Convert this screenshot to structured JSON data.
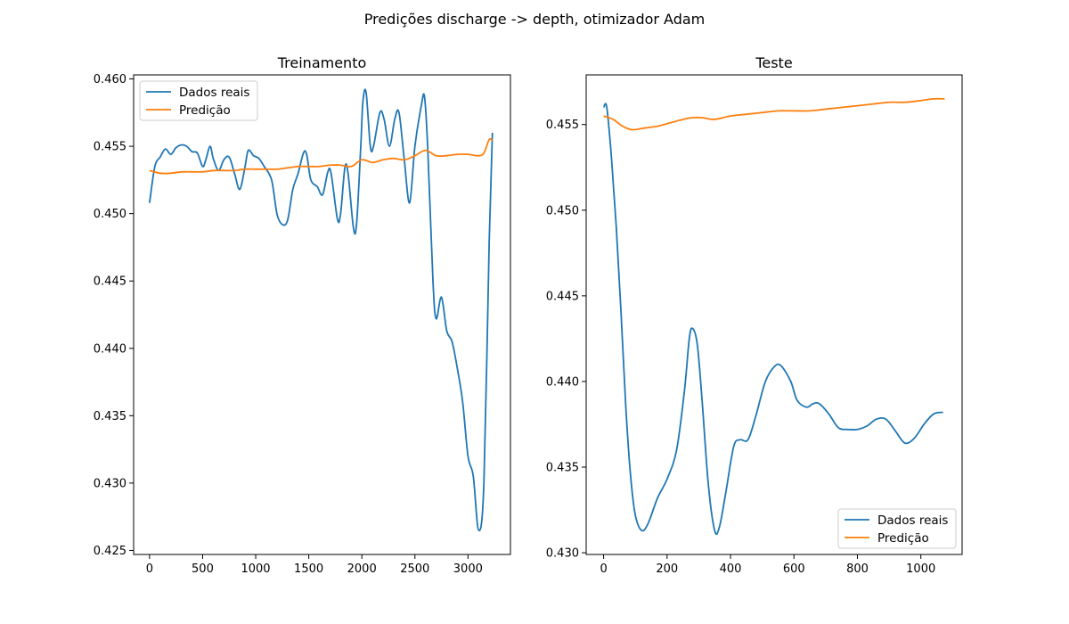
{
  "suptitle": "Predições discharge -> depth, otimizador Adam",
  "colors": {
    "real": "#1f77b4",
    "pred": "#ff7f0e"
  },
  "chart_data": [
    {
      "type": "line",
      "title": "Treinamento",
      "xlim": [
        -150,
        3400
      ],
      "ylim": [
        0.4247,
        0.4603
      ],
      "xticks": [
        0,
        500,
        1000,
        1500,
        2000,
        2500,
        3000
      ],
      "xtick_labels": [
        "0",
        "500",
        "1000",
        "1500",
        "2000",
        "2500",
        "3000"
      ],
      "yticks": [
        0.425,
        0.43,
        0.435,
        0.44,
        0.445,
        0.45,
        0.455,
        0.46
      ],
      "ytick_labels": [
        "0.425",
        "0.430",
        "0.435",
        "0.440",
        "0.445",
        "0.450",
        "0.455",
        "0.460"
      ],
      "legend_position": "upper-left",
      "series": [
        {
          "name": "Dados reais",
          "color": "#1f77b4",
          "points": [
            [
              0,
              0.4508
            ],
            [
              50,
              0.4535
            ],
            [
              100,
              0.4542
            ],
            [
              150,
              0.4548
            ],
            [
              200,
              0.4544
            ],
            [
              250,
              0.4549
            ],
            [
              300,
              0.4551
            ],
            [
              350,
              0.455
            ],
            [
              400,
              0.4546
            ],
            [
              450,
              0.4545
            ],
            [
              500,
              0.4535
            ],
            [
              530,
              0.454
            ],
            [
              570,
              0.455
            ],
            [
              600,
              0.4541
            ],
            [
              650,
              0.4532
            ],
            [
              700,
              0.454
            ],
            [
              750,
              0.4542
            ],
            [
              800,
              0.453
            ],
            [
              850,
              0.4518
            ],
            [
              900,
              0.4535
            ],
            [
              930,
              0.4547
            ],
            [
              980,
              0.4543
            ],
            [
              1030,
              0.4541
            ],
            [
              1080,
              0.4535
            ],
            [
              1150,
              0.4525
            ],
            [
              1200,
              0.45
            ],
            [
              1250,
              0.4492
            ],
            [
              1300,
              0.4495
            ],
            [
              1350,
              0.4518
            ],
            [
              1400,
              0.453
            ],
            [
              1450,
              0.4545
            ],
            [
              1480,
              0.4544
            ],
            [
              1520,
              0.4525
            ],
            [
              1580,
              0.452
            ],
            [
              1630,
              0.4514
            ],
            [
              1680,
              0.4531
            ],
            [
              1710,
              0.453
            ],
            [
              1770,
              0.4496
            ],
            [
              1800,
              0.45
            ],
            [
              1840,
              0.4534
            ],
            [
              1870,
              0.453
            ],
            [
              1920,
              0.449
            ],
            [
              1950,
              0.4492
            ],
            [
              1990,
              0.455
            ],
            [
              2010,
              0.4583
            ],
            [
              2040,
              0.459
            ],
            [
              2080,
              0.455
            ],
            [
              2110,
              0.455
            ],
            [
              2170,
              0.4575
            ],
            [
              2210,
              0.457
            ],
            [
              2260,
              0.455
            ],
            [
              2310,
              0.457
            ],
            [
              2350,
              0.4575
            ],
            [
              2400,
              0.454
            ],
            [
              2450,
              0.4508
            ],
            [
              2500,
              0.455
            ],
            [
              2560,
              0.458
            ],
            [
              2590,
              0.4587
            ],
            [
              2620,
              0.455
            ],
            [
              2670,
              0.445
            ],
            [
              2700,
              0.4422
            ],
            [
              2750,
              0.4438
            ],
            [
              2800,
              0.4413
            ],
            [
              2850,
              0.4405
            ],
            [
              2900,
              0.4385
            ],
            [
              2950,
              0.436
            ],
            [
              3000,
              0.432
            ],
            [
              3050,
              0.4305
            ],
            [
              3100,
              0.4265
            ],
            [
              3150,
              0.43
            ],
            [
              3200,
              0.448
            ],
            [
              3230,
              0.456
            ]
          ]
        },
        {
          "name": "Predição",
          "color": "#ff7f0e",
          "points": [
            [
              0,
              0.4532
            ],
            [
              100,
              0.453
            ],
            [
              200,
              0.453
            ],
            [
              300,
              0.4531
            ],
            [
              400,
              0.4531
            ],
            [
              500,
              0.4531
            ],
            [
              600,
              0.4532
            ],
            [
              700,
              0.4532
            ],
            [
              800,
              0.4532
            ],
            [
              900,
              0.4533
            ],
            [
              1000,
              0.4533
            ],
            [
              1100,
              0.4533
            ],
            [
              1200,
              0.4533
            ],
            [
              1300,
              0.4534
            ],
            [
              1400,
              0.4535
            ],
            [
              1500,
              0.4535
            ],
            [
              1600,
              0.4535
            ],
            [
              1700,
              0.4536
            ],
            [
              1800,
              0.4536
            ],
            [
              1900,
              0.4535
            ],
            [
              2000,
              0.454
            ],
            [
              2100,
              0.4538
            ],
            [
              2200,
              0.454
            ],
            [
              2300,
              0.4541
            ],
            [
              2400,
              0.454
            ],
            [
              2500,
              0.4543
            ],
            [
              2600,
              0.4547
            ],
            [
              2700,
              0.4543
            ],
            [
              2800,
              0.4543
            ],
            [
              2900,
              0.4544
            ],
            [
              3000,
              0.4544
            ],
            [
              3100,
              0.4543
            ],
            [
              3150,
              0.4545
            ],
            [
              3200,
              0.4555
            ],
            [
              3230,
              0.4554
            ]
          ]
        }
      ]
    },
    {
      "type": "line",
      "title": "Teste",
      "xlim": [
        -55,
        1130
      ],
      "ylim": [
        0.4299,
        0.4579
      ],
      "xticks": [
        0,
        200,
        400,
        600,
        800,
        1000
      ],
      "xtick_labels": [
        "0",
        "200",
        "400",
        "600",
        "800",
        "1000"
      ],
      "yticks": [
        0.43,
        0.435,
        0.44,
        0.445,
        0.45,
        0.455
      ],
      "ytick_labels": [
        "0.430",
        "0.435",
        "0.440",
        "0.445",
        "0.450",
        "0.455"
      ],
      "legend_position": "lower-right",
      "series": [
        {
          "name": "Dados reais",
          "color": "#1f77b4",
          "points": [
            [
              0,
              0.456
            ],
            [
              10,
              0.456
            ],
            [
              25,
              0.453
            ],
            [
              40,
              0.449
            ],
            [
              55,
              0.444
            ],
            [
              70,
              0.4385
            ],
            [
              85,
              0.4345
            ],
            [
              100,
              0.4322
            ],
            [
              120,
              0.4313
            ],
            [
              140,
              0.4317
            ],
            [
              170,
              0.4332
            ],
            [
              200,
              0.4343
            ],
            [
              230,
              0.436
            ],
            [
              255,
              0.4395
            ],
            [
              270,
              0.4425
            ],
            [
              280,
              0.4431
            ],
            [
              295,
              0.4422
            ],
            [
              310,
              0.439
            ],
            [
              330,
              0.434
            ],
            [
              350,
              0.4313
            ],
            [
              365,
              0.4315
            ],
            [
              385,
              0.4335
            ],
            [
              410,
              0.4362
            ],
            [
              430,
              0.4366
            ],
            [
              455,
              0.4366
            ],
            [
              480,
              0.438
            ],
            [
              510,
              0.44
            ],
            [
              540,
              0.4409
            ],
            [
              560,
              0.4409
            ],
            [
              590,
              0.44
            ],
            [
              610,
              0.4389
            ],
            [
              640,
              0.4385
            ],
            [
              660,
              0.4387
            ],
            [
              680,
              0.4387
            ],
            [
              710,
              0.4381
            ],
            [
              740,
              0.4373
            ],
            [
              770,
              0.4372
            ],
            [
              800,
              0.4372
            ],
            [
              830,
              0.4374
            ],
            [
              860,
              0.4378
            ],
            [
              890,
              0.4378
            ],
            [
              920,
              0.4371
            ],
            [
              950,
              0.4364
            ],
            [
              980,
              0.4367
            ],
            [
              1010,
              0.4375
            ],
            [
              1040,
              0.4381
            ],
            [
              1070,
              0.4382
            ]
          ]
        },
        {
          "name": "Predição",
          "color": "#ff7f0e",
          "points": [
            [
              0,
              0.4555
            ],
            [
              30,
              0.4553
            ],
            [
              60,
              0.4549
            ],
            [
              90,
              0.4547
            ],
            [
              130,
              0.4548
            ],
            [
              170,
              0.4549
            ],
            [
              210,
              0.4551
            ],
            [
              250,
              0.4553
            ],
            [
              280,
              0.4554
            ],
            [
              310,
              0.4554
            ],
            [
              350,
              0.4553
            ],
            [
              400,
              0.4555
            ],
            [
              450,
              0.4556
            ],
            [
              500,
              0.4557
            ],
            [
              550,
              0.4558
            ],
            [
              600,
              0.4558
            ],
            [
              650,
              0.4558
            ],
            [
              700,
              0.4559
            ],
            [
              750,
              0.456
            ],
            [
              800,
              0.4561
            ],
            [
              850,
              0.4562
            ],
            [
              900,
              0.4563
            ],
            [
              950,
              0.4563
            ],
            [
              1000,
              0.4564
            ],
            [
              1040,
              0.4565
            ],
            [
              1075,
              0.4565
            ]
          ]
        }
      ]
    }
  ]
}
